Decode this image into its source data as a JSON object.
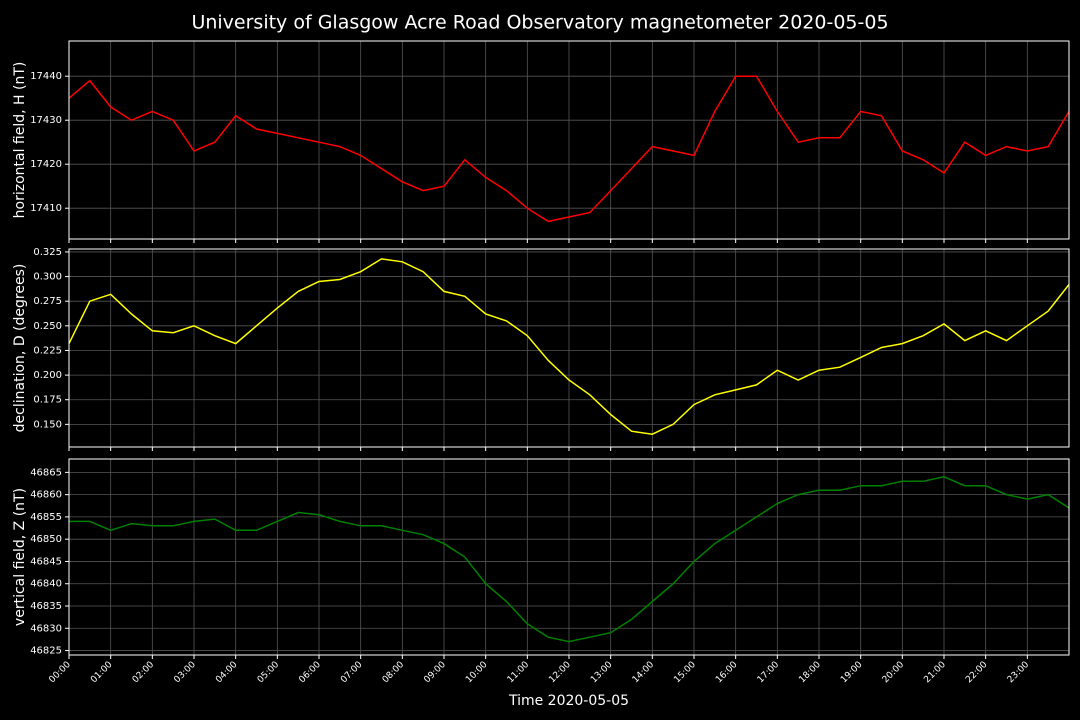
{
  "title": "University of Glasgow Acre Road Observatory magnetometer 2020-05-05",
  "chart_data": [
    {
      "type": "line",
      "ylabel": "horizontal field, H (nT)",
      "grid": true,
      "xlim": [
        0,
        24
      ],
      "ylim": [
        17403,
        17448
      ],
      "yticks": [
        17410,
        17420,
        17430,
        17440
      ],
      "x": [
        0,
        0.5,
        1,
        1.5,
        2,
        2.5,
        3,
        3.5,
        4,
        4.5,
        5,
        5.5,
        6,
        6.5,
        7,
        7.5,
        8,
        8.5,
        9,
        9.5,
        10,
        10.5,
        11,
        11.5,
        12,
        12.5,
        13,
        13.5,
        14,
        14.5,
        15,
        15.5,
        16,
        16.5,
        17,
        17.5,
        18,
        18.5,
        19,
        19.5,
        20,
        20.5,
        21,
        21.5,
        22,
        22.5,
        23,
        23.5,
        24
      ],
      "series": [
        {
          "color": "#ff0000",
          "values": [
            17435,
            17439,
            17433,
            17430,
            17432,
            17430,
            17423,
            17425,
            17431,
            17428,
            17427,
            17426,
            17425,
            17424,
            17422,
            17419,
            17416,
            17414,
            17415,
            17421,
            17417,
            17414,
            17410,
            17407,
            17408,
            17409,
            17414,
            17419,
            17424,
            17423,
            17422,
            17432,
            17440,
            17440,
            17432,
            17425,
            17426,
            17426,
            17432,
            17431,
            17423,
            17421,
            17418,
            17425,
            17422,
            17424,
            17423,
            17424,
            17432
          ]
        }
      ]
    },
    {
      "type": "line",
      "ylabel": "declination, D (degrees)",
      "grid": true,
      "xlim": [
        0,
        24
      ],
      "ylim": [
        0.127,
        0.328
      ],
      "yticks": [
        {
          "value": 0.15,
          "label": "0.150"
        },
        {
          "value": 0.175,
          "label": "0.175"
        },
        {
          "value": 0.2,
          "label": "0.200"
        },
        {
          "value": 0.225,
          "label": "0.225"
        },
        {
          "value": 0.25,
          "label": "0.250"
        },
        {
          "value": 0.275,
          "label": "0.275"
        },
        {
          "value": 0.3,
          "label": "0.300"
        },
        {
          "value": 0.325,
          "label": "0.325"
        }
      ],
      "x": [
        0,
        0.5,
        1,
        1.5,
        2,
        2.5,
        3,
        3.5,
        4,
        4.5,
        5,
        5.5,
        6,
        6.5,
        7,
        7.5,
        8,
        8.5,
        9,
        9.5,
        10,
        10.5,
        11,
        11.5,
        12,
        12.5,
        13,
        13.5,
        14,
        14.5,
        15,
        15.5,
        16,
        16.5,
        17,
        17.5,
        18,
        18.5,
        19,
        19.5,
        20,
        20.5,
        21,
        21.5,
        22,
        22.5,
        23,
        23.5,
        24
      ],
      "series": [
        {
          "color": "#ffff00",
          "values": [
            0.232,
            0.275,
            0.282,
            0.262,
            0.245,
            0.243,
            0.25,
            0.24,
            0.232,
            0.25,
            0.268,
            0.285,
            0.295,
            0.297,
            0.305,
            0.318,
            0.315,
            0.305,
            0.285,
            0.28,
            0.262,
            0.255,
            0.24,
            0.215,
            0.195,
            0.18,
            0.16,
            0.143,
            0.14,
            0.15,
            0.17,
            0.18,
            0.185,
            0.19,
            0.205,
            0.195,
            0.205,
            0.208,
            0.218,
            0.228,
            0.232,
            0.24,
            0.252,
            0.235,
            0.245,
            0.235,
            0.25,
            0.265,
            0.292
          ]
        }
      ]
    },
    {
      "type": "line",
      "ylabel": "vertical field, Z (nT)",
      "xlabel": "Time 2020-05-05",
      "grid": true,
      "xlim": [
        0,
        24
      ],
      "ylim": [
        46824,
        46868
      ],
      "yticks": [
        46825,
        46830,
        46835,
        46840,
        46845,
        46850,
        46855,
        46860,
        46865
      ],
      "xticks": [
        {
          "value": 0,
          "label": "00:00"
        },
        {
          "value": 1,
          "label": "01:00"
        },
        {
          "value": 2,
          "label": "02:00"
        },
        {
          "value": 3,
          "label": "03:00"
        },
        {
          "value": 4,
          "label": "04:00"
        },
        {
          "value": 5,
          "label": "05:00"
        },
        {
          "value": 6,
          "label": "06:00"
        },
        {
          "value": 7,
          "label": "07:00"
        },
        {
          "value": 8,
          "label": "08:00"
        },
        {
          "value": 9,
          "label": "09:00"
        },
        {
          "value": 10,
          "label": "10:00"
        },
        {
          "value": 11,
          "label": "11:00"
        },
        {
          "value": 12,
          "label": "12:00"
        },
        {
          "value": 13,
          "label": "13:00"
        },
        {
          "value": 14,
          "label": "14:00"
        },
        {
          "value": 15,
          "label": "15:00"
        },
        {
          "value": 16,
          "label": "16:00"
        },
        {
          "value": 17,
          "label": "17:00"
        },
        {
          "value": 18,
          "label": "18:00"
        },
        {
          "value": 19,
          "label": "19:00"
        },
        {
          "value": 20,
          "label": "20:00"
        },
        {
          "value": 21,
          "label": "21:00"
        },
        {
          "value": 22,
          "label": "22:00"
        },
        {
          "value": 23,
          "label": "23:00"
        }
      ],
      "x": [
        0,
        0.5,
        1,
        1.5,
        2,
        2.5,
        3,
        3.5,
        4,
        4.5,
        5,
        5.5,
        6,
        6.5,
        7,
        7.5,
        8,
        8.5,
        9,
        9.5,
        10,
        10.5,
        11,
        11.5,
        12,
        12.5,
        13,
        13.5,
        14,
        14.5,
        15,
        15.5,
        16,
        16.5,
        17,
        17.5,
        18,
        18.5,
        19,
        19.5,
        20,
        20.5,
        21,
        21.5,
        22,
        22.5,
        23,
        23.5,
        24
      ],
      "series": [
        {
          "color": "#008000",
          "values": [
            46854,
            46854,
            46852,
            46853.5,
            46853,
            46853,
            46854,
            46854.5,
            46852,
            46852,
            46854,
            46856,
            46855.5,
            46854,
            46853,
            46853,
            46852,
            46851,
            46849,
            46846,
            46840,
            46836,
            46831,
            46828,
            46827,
            46828,
            46829,
            46832,
            46836,
            46840,
            46845,
            46849,
            46852,
            46855,
            46858,
            46860,
            46861,
            46861,
            46862,
            46862,
            46863,
            46863,
            46864,
            46862,
            46862,
            46860,
            46859,
            46860,
            46857
          ]
        }
      ]
    }
  ]
}
